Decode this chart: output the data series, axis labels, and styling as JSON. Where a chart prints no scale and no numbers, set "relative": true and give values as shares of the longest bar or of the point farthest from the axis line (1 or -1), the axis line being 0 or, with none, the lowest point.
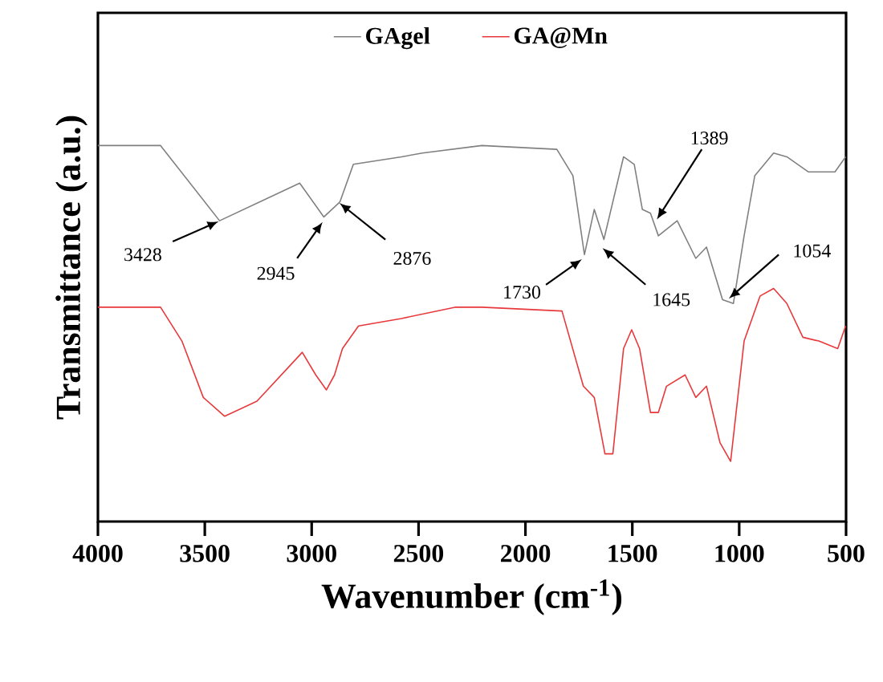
{
  "chart_data": {
    "type": "line",
    "relative": true,
    "xlabel": "Wavenumber (cm$^{-1}$)",
    "ylabel": "Transmittance (a.u.)",
    "xlim": [
      4000,
      500
    ],
    "xticks": [
      4000,
      3500,
      3000,
      2500,
      2000,
      1500,
      1000,
      500
    ],
    "legend": "top",
    "marker": "none",
    "line_style": "solid",
    "series": [
      {
        "name": "GAgel",
        "color": "#808080",
        "x": [
          4000,
          3707,
          3431,
          3056,
          2943,
          2868,
          2805,
          2580,
          2482,
          2204,
          1853,
          1778,
          1724,
          1678,
          1633,
          1541,
          1491,
          1453,
          1415,
          1378,
          1290,
          1203,
          1153,
          1078,
          1027,
          977,
          927,
          839,
          777,
          677,
          552,
          502
        ],
        "values": [
          1.0,
          1.0,
          0.8,
          0.9,
          0.81,
          0.85,
          0.95,
          0.97,
          0.98,
          1.0,
          0.99,
          0.92,
          0.71,
          0.83,
          0.75,
          0.97,
          0.95,
          0.83,
          0.82,
          0.76,
          0.8,
          0.7,
          0.73,
          0.59,
          0.58,
          0.76,
          0.92,
          0.98,
          0.97,
          0.93,
          0.93,
          0.97
        ]
      },
      {
        "name": "GA@Mn",
        "color": "#e8383b",
        "x": [
          4000,
          3707,
          3607,
          3507,
          3407,
          3256,
          3044,
          2981,
          2931,
          2893,
          2856,
          2781,
          2580,
          2330,
          2204,
          1829,
          1729,
          1678,
          1628,
          1591,
          1541,
          1503,
          1466,
          1415,
          1378,
          1340,
          1253,
          1203,
          1153,
          1090,
          1040,
          977,
          902,
          839,
          777,
          702,
          627,
          539,
          502
        ],
        "values": [
          0.57,
          0.57,
          0.48,
          0.33,
          0.28,
          0.32,
          0.45,
          0.39,
          0.35,
          0.39,
          0.46,
          0.52,
          0.54,
          0.57,
          0.57,
          0.56,
          0.36,
          0.33,
          0.18,
          0.18,
          0.46,
          0.51,
          0.46,
          0.29,
          0.29,
          0.36,
          0.39,
          0.33,
          0.36,
          0.21,
          0.16,
          0.48,
          0.6,
          0.62,
          0.58,
          0.49,
          0.48,
          0.46,
          0.52
        ]
      }
    ],
    "annotations": [
      {
        "text": "3428",
        "x": 3428,
        "y": 0.8
      },
      {
        "text": "2945",
        "x": 2945,
        "y": 0.8
      },
      {
        "text": "2876",
        "x": 2876,
        "y": 0.85
      },
      {
        "text": "1730",
        "x": 1730,
        "y": 0.7
      },
      {
        "text": "1645",
        "x": 1645,
        "y": 0.73
      },
      {
        "text": "1389",
        "x": 1389,
        "y": 0.8
      },
      {
        "text": "1054",
        "x": 1054,
        "y": 0.59
      }
    ]
  }
}
